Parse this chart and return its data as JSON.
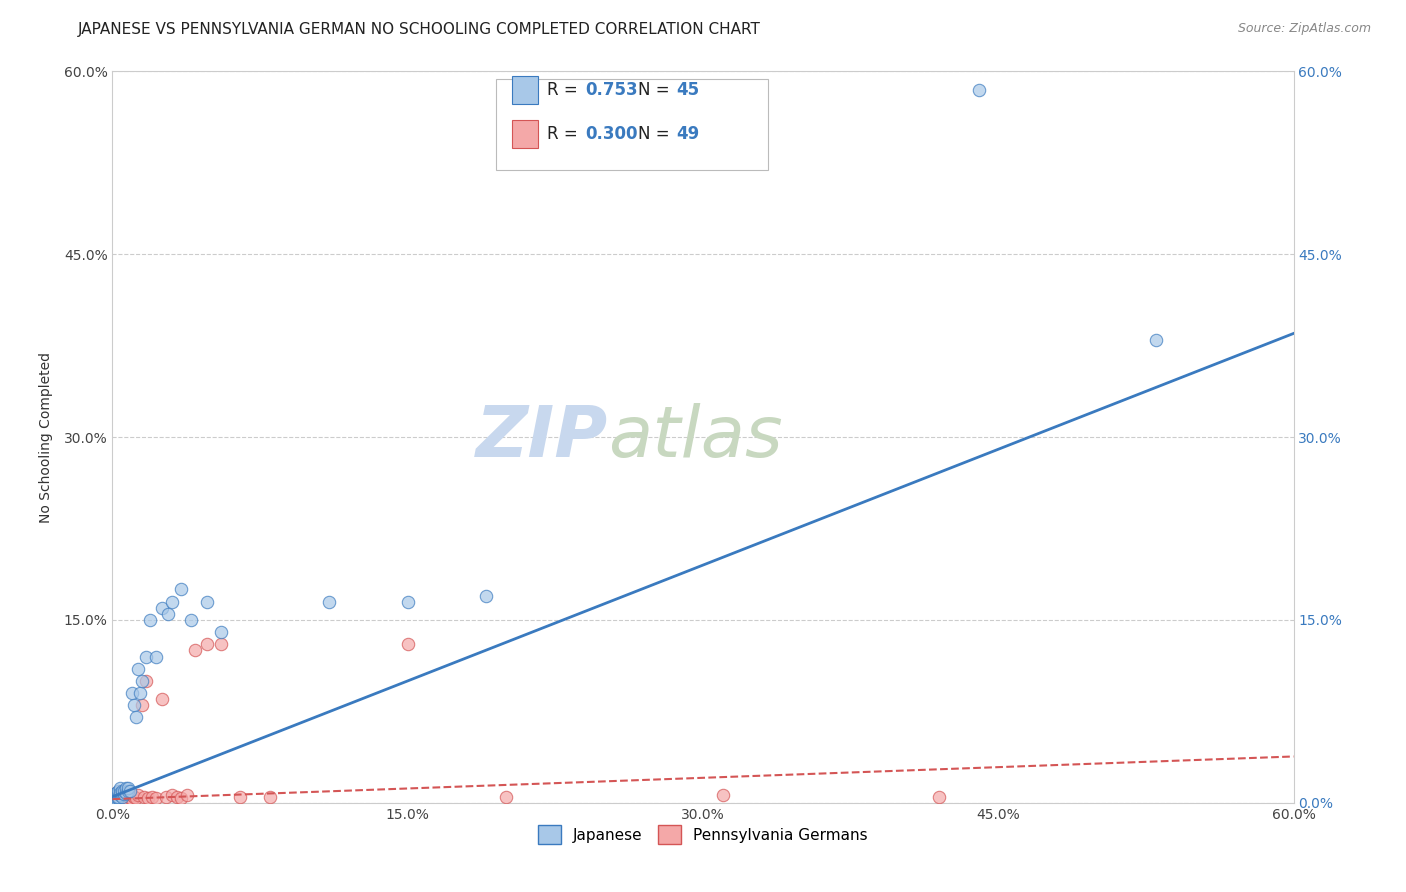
{
  "title": "JAPANESE VS PENNSYLVANIA GERMAN NO SCHOOLING COMPLETED CORRELATION CHART",
  "source": "Source: ZipAtlas.com",
  "ylabel": "No Schooling Completed",
  "xlabel": "",
  "watermark_zip": "ZIP",
  "watermark_atlas": "atlas",
  "xlim": [
    0.0,
    0.6
  ],
  "ylim": [
    0.0,
    0.6
  ],
  "xticks": [
    0.0,
    0.15,
    0.3,
    0.45,
    0.6
  ],
  "yticks": [
    0.0,
    0.15,
    0.3,
    0.45,
    0.6
  ],
  "xticklabels": [
    "0.0%",
    "15.0%",
    "30.0%",
    "45.0%",
    "60.0%"
  ],
  "left_yticklabels": [
    "",
    "15.0%",
    "30.0%",
    "45.0%",
    "60.0%"
  ],
  "right_yticklabels": [
    "0.0%",
    "15.0%",
    "30.0%",
    "45.0%",
    "60.0%"
  ],
  "japanese_scatter_color": "#a8c8e8",
  "pennsylvania_scatter_color": "#f4a8a8",
  "japanese_line_color": "#3a7abf",
  "pennsylvania_line_color": "#d45555",
  "R_japanese": "0.753",
  "N_japanese": "45",
  "R_pennsylvania": "0.300",
  "N_pennsylvania": "49",
  "japanese_x": [
    0.001,
    0.001,
    0.001,
    0.002,
    0.002,
    0.002,
    0.002,
    0.003,
    0.003,
    0.003,
    0.003,
    0.004,
    0.004,
    0.004,
    0.005,
    0.005,
    0.005,
    0.006,
    0.006,
    0.007,
    0.007,
    0.008,
    0.008,
    0.009,
    0.01,
    0.011,
    0.012,
    0.013,
    0.014,
    0.015,
    0.017,
    0.019,
    0.022,
    0.025,
    0.028,
    0.03,
    0.035,
    0.04,
    0.048,
    0.055,
    0.11,
    0.15,
    0.19,
    0.44,
    0.53
  ],
  "japanese_y": [
    0.005,
    0.007,
    0.004,
    0.003,
    0.006,
    0.005,
    0.008,
    0.004,
    0.007,
    0.005,
    0.01,
    0.006,
    0.012,
    0.008,
    0.005,
    0.008,
    0.01,
    0.007,
    0.01,
    0.008,
    0.012,
    0.01,
    0.012,
    0.01,
    0.09,
    0.08,
    0.07,
    0.11,
    0.09,
    0.1,
    0.12,
    0.15,
    0.12,
    0.16,
    0.155,
    0.165,
    0.175,
    0.15,
    0.165,
    0.14,
    0.165,
    0.165,
    0.17,
    0.585,
    0.38
  ],
  "pennsylvania_x": [
    0.001,
    0.001,
    0.001,
    0.002,
    0.002,
    0.002,
    0.002,
    0.003,
    0.003,
    0.003,
    0.004,
    0.004,
    0.004,
    0.005,
    0.005,
    0.005,
    0.006,
    0.006,
    0.007,
    0.007,
    0.008,
    0.008,
    0.009,
    0.01,
    0.01,
    0.011,
    0.012,
    0.013,
    0.015,
    0.016,
    0.017,
    0.018,
    0.02,
    0.022,
    0.025,
    0.027,
    0.03,
    0.033,
    0.035,
    0.038,
    0.042,
    0.048,
    0.055,
    0.065,
    0.08,
    0.15,
    0.2,
    0.31,
    0.42
  ],
  "pennsylvania_y": [
    0.003,
    0.005,
    0.007,
    0.002,
    0.004,
    0.006,
    0.008,
    0.002,
    0.005,
    0.008,
    0.003,
    0.006,
    0.009,
    0.002,
    0.005,
    0.01,
    0.003,
    0.007,
    0.004,
    0.008,
    0.003,
    0.007,
    0.004,
    0.003,
    0.006,
    0.005,
    0.004,
    0.006,
    0.08,
    0.005,
    0.1,
    0.004,
    0.005,
    0.004,
    0.085,
    0.005,
    0.006,
    0.005,
    0.004,
    0.006,
    0.125,
    0.13,
    0.13,
    0.005,
    0.005,
    0.13,
    0.005,
    0.006,
    0.005
  ],
  "trend_line_jap_x0": 0.0,
  "trend_line_jap_y0": 0.005,
  "trend_line_jap_x1": 0.6,
  "trend_line_jap_y1": 0.385,
  "trend_line_pen_x0": 0.0,
  "trend_line_pen_y0": 0.003,
  "trend_line_pen_x1": 0.6,
  "trend_line_pen_y1": 0.038,
  "grid_color": "#cccccc",
  "background_color": "#ffffff",
  "title_fontsize": 11,
  "axis_label_fontsize": 10,
  "tick_fontsize": 10,
  "legend_fontsize": 12,
  "watermark_fontsize_zip": 52,
  "watermark_fontsize_atlas": 52,
  "watermark_color_zip": "#c8d8ee",
  "watermark_color_atlas": "#c8d8c0",
  "bottom_legend_labels": [
    "Japanese",
    "Pennsylvania Germans"
  ]
}
